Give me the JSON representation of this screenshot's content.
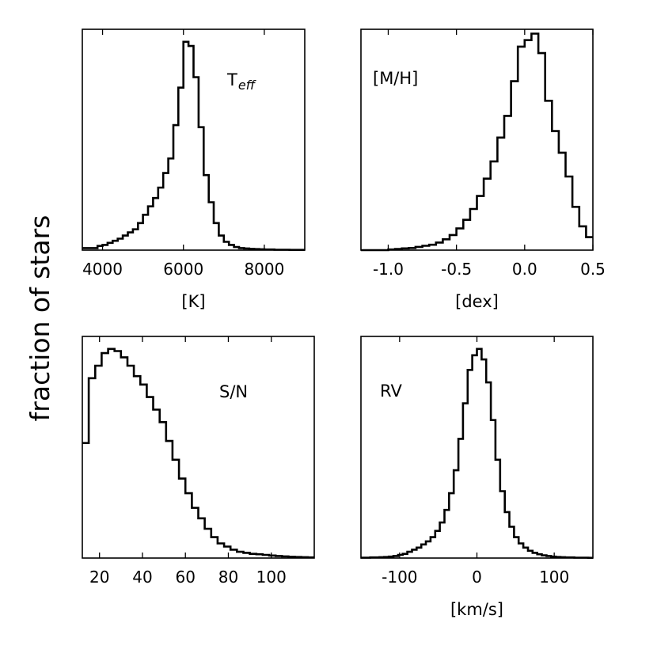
{
  "figure": {
    "ylabel": "fraction of stars"
  },
  "chart_data": [
    {
      "type": "histogram",
      "title": "T_eff",
      "title_main": "T",
      "title_sub": "eff",
      "xlabel": "[K]",
      "ylabel": "fraction of stars",
      "xlim": [
        3500,
        9000
      ],
      "ylim": [
        0,
        1.06
      ],
      "xticks": [
        4000,
        6000,
        8000
      ],
      "xtick_labels": [
        "4000",
        "6000",
        "8000"
      ],
      "bin_edges": [
        3500,
        3625,
        3750,
        3875,
        4000,
        4125,
        4250,
        4375,
        4500,
        4625,
        4750,
        4875,
        5000,
        5125,
        5250,
        5375,
        5500,
        5625,
        5750,
        5875,
        6000,
        6125,
        6250,
        6375,
        6500,
        6625,
        6750,
        6875,
        7000,
        7125,
        7250,
        7375,
        7500,
        7625,
        7750,
        7875,
        8000,
        8125,
        8250,
        8375,
        8500,
        8625,
        8750,
        8875,
        9000
      ],
      "values": [
        0.01,
        0.01,
        0.01,
        0.02,
        0.025,
        0.035,
        0.045,
        0.055,
        0.07,
        0.085,
        0.1,
        0.13,
        0.17,
        0.21,
        0.25,
        0.3,
        0.37,
        0.44,
        0.6,
        0.78,
        1.0,
        0.98,
        0.83,
        0.59,
        0.36,
        0.23,
        0.13,
        0.07,
        0.04,
        0.025,
        0.015,
        0.01,
        0.008,
        0.006,
        0.005,
        0.004,
        0.003,
        0.003,
        0.002,
        0.002,
        0.002,
        0.001,
        0.001,
        0.001
      ]
    },
    {
      "type": "histogram",
      "title": "[M/H]",
      "xlabel": "[dex]",
      "ylabel": "fraction of stars",
      "xlim": [
        -1.2,
        0.5
      ],
      "ylim": [
        0,
        1.02
      ],
      "xticks": [
        -1.0,
        -0.5,
        0.0,
        0.5
      ],
      "xtick_labels": [
        "-1.0",
        "-0.5",
        "0.0",
        "0.5"
      ],
      "bin_edges": [
        -1.2,
        -1.15,
        -1.1,
        -1.05,
        -1.0,
        -0.95,
        -0.9,
        -0.85,
        -0.8,
        -0.75,
        -0.7,
        -0.65,
        -0.6,
        -0.55,
        -0.5,
        -0.45,
        -0.4,
        -0.35,
        -0.3,
        -0.25,
        -0.2,
        -0.15,
        -0.1,
        -0.05,
        0.0,
        0.05,
        0.1,
        0.15,
        0.2,
        0.25,
        0.3,
        0.35,
        0.4,
        0.45,
        0.5
      ],
      "values": [
        0.0,
        0.0,
        0.0,
        0.0,
        0.003,
        0.005,
        0.008,
        0.01,
        0.015,
        0.02,
        0.025,
        0.035,
        0.05,
        0.07,
        0.1,
        0.14,
        0.19,
        0.25,
        0.33,
        0.41,
        0.52,
        0.62,
        0.78,
        0.94,
        0.97,
        1.0,
        0.91,
        0.69,
        0.55,
        0.45,
        0.34,
        0.2,
        0.11,
        0.06
      ]
    },
    {
      "type": "histogram",
      "title": "S/N",
      "xlabel": "",
      "ylabel": "fraction of stars",
      "xlim": [
        12,
        120
      ],
      "ylim": [
        0,
        1.06
      ],
      "xticks": [
        20,
        40,
        60,
        80,
        100
      ],
      "xtick_labels": [
        "20",
        "40",
        "60",
        "80",
        "100"
      ],
      "bin_edges": [
        12,
        15,
        18,
        21,
        24,
        27,
        30,
        33,
        36,
        39,
        42,
        45,
        48,
        51,
        54,
        57,
        60,
        63,
        66,
        69,
        72,
        75,
        78,
        81,
        84,
        87,
        90,
        93,
        96,
        99,
        102,
        105,
        108,
        111,
        114,
        117,
        120
      ],
      "values": [
        0.55,
        0.86,
        0.92,
        0.98,
        1.0,
        0.99,
        0.96,
        0.92,
        0.87,
        0.83,
        0.77,
        0.71,
        0.65,
        0.56,
        0.47,
        0.38,
        0.31,
        0.24,
        0.19,
        0.14,
        0.1,
        0.07,
        0.055,
        0.04,
        0.03,
        0.025,
        0.02,
        0.018,
        0.015,
        0.012,
        0.01,
        0.008,
        0.006,
        0.005,
        0.004,
        0.003
      ]
    },
    {
      "type": "histogram",
      "title": "RV",
      "xlabel": "[km/s]",
      "ylabel": "fraction of stars",
      "xlim": [
        -150,
        150
      ],
      "ylim": [
        0,
        1.06
      ],
      "xticks": [
        -100,
        0,
        100
      ],
      "xtick_labels": [
        "-100",
        "0",
        "100"
      ],
      "bin_edges": [
        -150,
        -144,
        -138,
        -132,
        -126,
        -120,
        -114,
        -108,
        -102,
        -96,
        -90,
        -84,
        -78,
        -72,
        -66,
        -60,
        -54,
        -48,
        -42,
        -36,
        -30,
        -24,
        -18,
        -12,
        -6,
        0,
        6,
        12,
        18,
        24,
        30,
        36,
        42,
        48,
        54,
        60,
        66,
        72,
        78,
        84,
        90,
        96,
        102,
        108,
        114,
        120,
        126,
        132,
        138,
        144,
        150
      ],
      "values": [
        0.002,
        0.002,
        0.003,
        0.003,
        0.004,
        0.005,
        0.007,
        0.01,
        0.015,
        0.02,
        0.03,
        0.04,
        0.05,
        0.065,
        0.08,
        0.1,
        0.13,
        0.17,
        0.23,
        0.31,
        0.42,
        0.57,
        0.74,
        0.9,
        0.97,
        1.0,
        0.95,
        0.84,
        0.66,
        0.47,
        0.32,
        0.22,
        0.15,
        0.1,
        0.07,
        0.05,
        0.035,
        0.025,
        0.018,
        0.013,
        0.01,
        0.007,
        0.005,
        0.004,
        0.003,
        0.003,
        0.002,
        0.002,
        0.002,
        0.001
      ]
    }
  ]
}
